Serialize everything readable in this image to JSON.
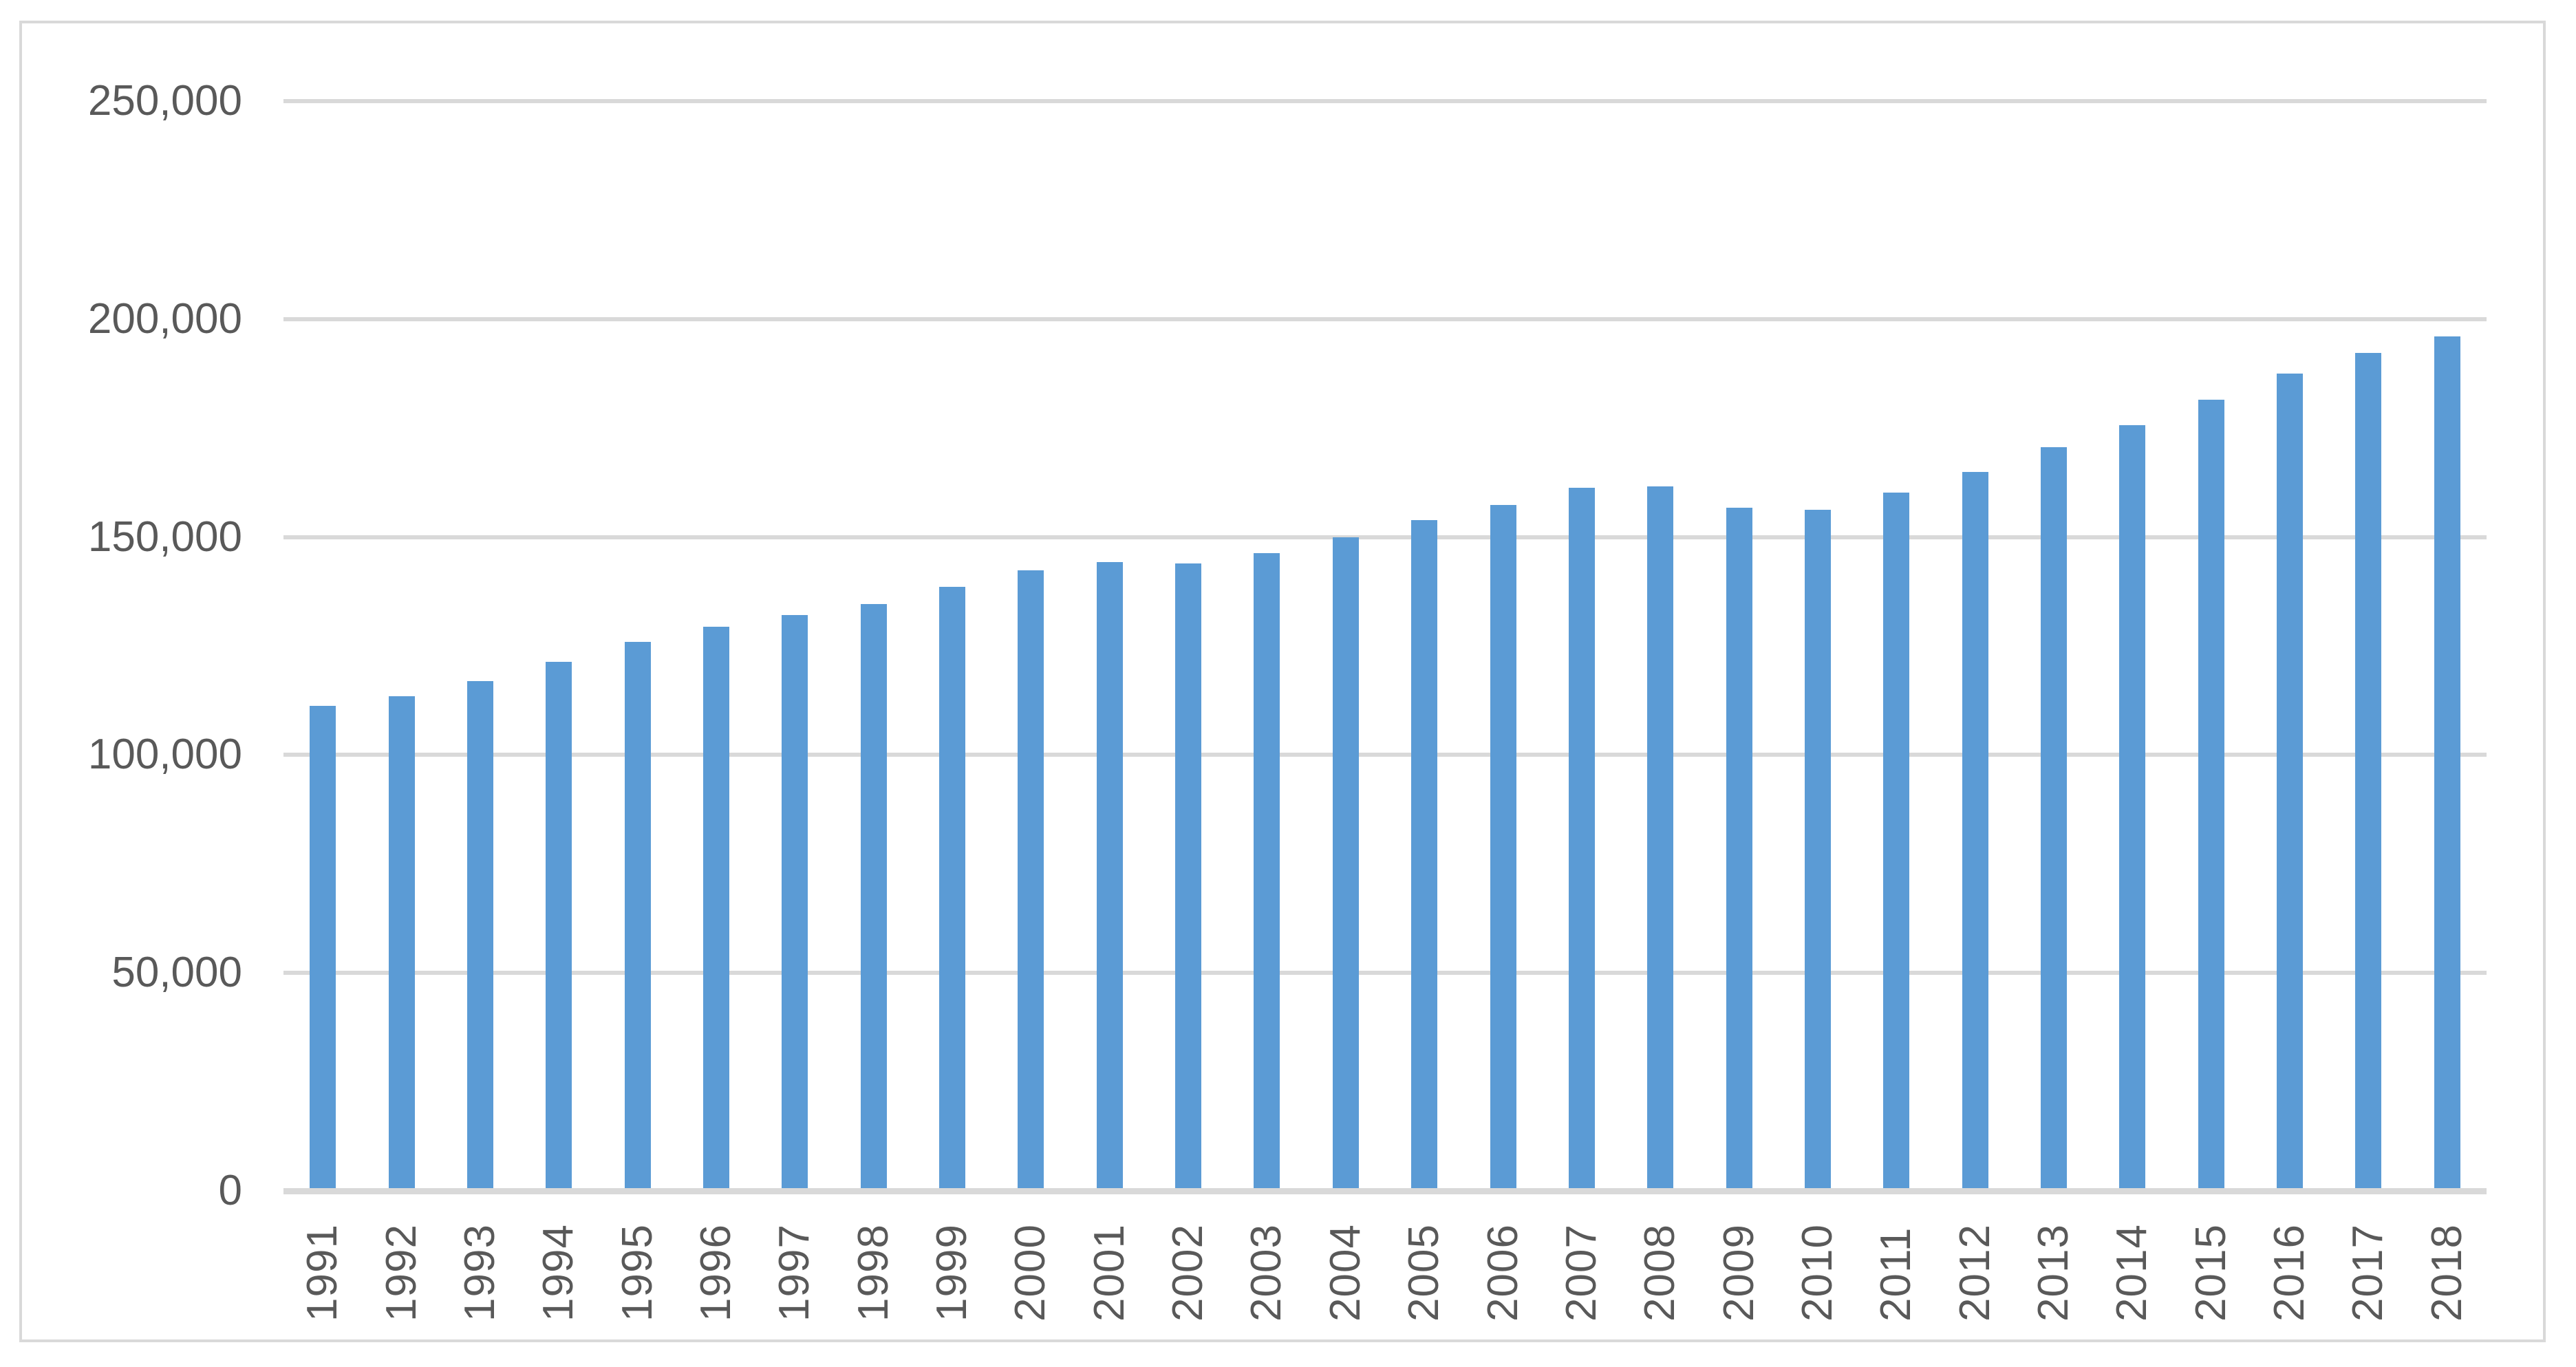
{
  "chart_data": {
    "type": "bar",
    "title": "",
    "xlabel": "",
    "ylabel": "",
    "categories": [
      "1991",
      "1992",
      "1993",
      "1994",
      "1995",
      "1996",
      "1997",
      "1998",
      "1999",
      "2000",
      "2001",
      "2002",
      "2003",
      "2004",
      "2005",
      "2006",
      "2007",
      "2008",
      "2009",
      "2010",
      "2011",
      "2012",
      "2013",
      "2014",
      "2015",
      "2016",
      "2017",
      "2018"
    ],
    "values": [
      111200,
      113400,
      117000,
      121400,
      126000,
      129400,
      132100,
      134700,
      138500,
      142300,
      144300,
      143900,
      146300,
      150000,
      153900,
      157400,
      161300,
      161600,
      156700,
      156300,
      160200,
      164900,
      170600,
      175600,
      181500,
      187500,
      192300,
      196100
    ],
    "ylim": [
      0,
      250000
    ],
    "yticks": [
      0,
      50000,
      100000,
      150000,
      200000,
      250000
    ],
    "ytick_labels": [
      "0",
      "50,000",
      "100,000",
      "150,000",
      "200,000",
      "250,000"
    ],
    "grid": true,
    "legend": false,
    "legend_position": "none",
    "bar_color": "#5b9bd5",
    "gridline_color": "#d9d9d9",
    "axis_line_color": "#d9d9d9",
    "label_color": "#595959",
    "frame_border_color": "#d9d9d9",
    "background_color": "#ffffff"
  }
}
